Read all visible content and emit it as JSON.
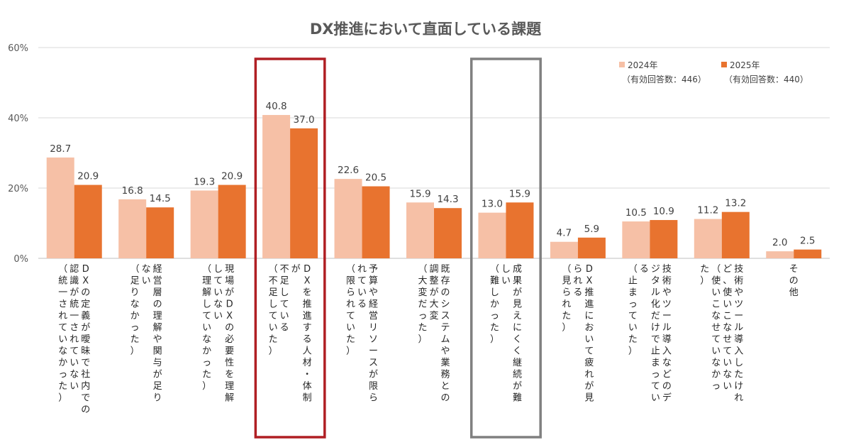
{
  "chart_data": {
    "type": "bar",
    "title": "DX推進において直面している課題",
    "ylim": [
      0,
      60
    ],
    "yticks": [
      0,
      20,
      40,
      60
    ],
    "ytick_labels": [
      "0%",
      "20%",
      "40%",
      "60%"
    ],
    "grid": true,
    "legend_position": "top-right",
    "categories": [
      [
        "DXの定義が曖昧で社内での",
        "認識が統一されていない",
        "（統一されていなかった）"
      ],
      [
        "経営層の理解や関与が足り",
        "ない",
        "（足りなかった）"
      ],
      [
        "現場がDXの必要性を理解",
        "していない",
        "（理解していなかった）"
      ],
      [
        "DXを推進する人材・体制",
        "が",
        "不足している",
        "（不足していた）"
      ],
      [
        "予算や経営リソースが限ら",
        "れている",
        "（限られていた）"
      ],
      [
        "既存のシステムや業務との",
        "調整が大変",
        "（大変だった）"
      ],
      [
        "成果が見えにくく継続が難",
        "しい",
        "（難しかった）"
      ],
      [
        "DX推進において疲れが見",
        "られる",
        "（見られた）"
      ],
      [
        "技術やツール導入などのデ",
        "ジタル化だけで止まってい",
        "る",
        "（止まっていた）"
      ],
      [
        "技術やツール導入したけれ",
        "ど、使いこなせていない",
        "（使いこなせていなかっ",
        "た）"
      ],
      [
        "その他"
      ]
    ],
    "series": [
      {
        "name": "2024年",
        "note": "（有効回答数：446）",
        "color": "#F6C0A6",
        "values": [
          28.7,
          16.8,
          19.3,
          40.8,
          22.6,
          15.9,
          13.0,
          4.7,
          10.5,
          11.2,
          2.0
        ],
        "labels": [
          "28.7",
          "16.8",
          "19.3",
          "40.8",
          "22.6",
          "15.9",
          "13.0",
          "4.7",
          "10.5",
          "11.2",
          "2.0"
        ]
      },
      {
        "name": "2025年",
        "note": "（有効回答数：440）",
        "color": "#E8732F",
        "values": [
          20.9,
          14.5,
          20.9,
          37.0,
          20.5,
          14.3,
          15.9,
          5.9,
          10.9,
          13.2,
          2.5
        ],
        "labels": [
          "20.9",
          "14.5",
          "20.9",
          "37.0",
          "20.5",
          "14.3",
          "15.9",
          "5.9",
          "10.9",
          "13.2",
          "2.5"
        ]
      }
    ],
    "highlight_boxes": [
      {
        "category_index": 3,
        "color": "#B01F24"
      },
      {
        "category_index": 6,
        "color": "#808080"
      }
    ]
  }
}
